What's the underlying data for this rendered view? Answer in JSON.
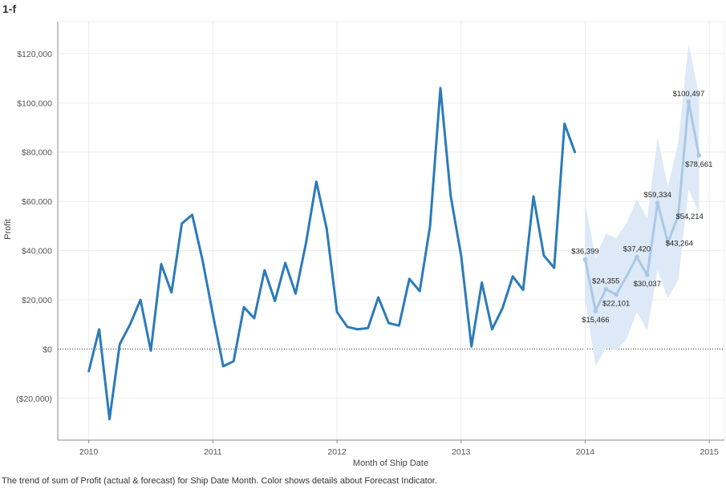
{
  "sheet_title": "1-f",
  "caption": "The trend of sum of Profit (actual & forecast)  for Ship Date Month.  Color shows details about Forecast Indicator.",
  "colors": {
    "actual": "#2b7bb9",
    "forecast": "#aac8e6",
    "band": "#dde9f6",
    "grid": "#ebebeb",
    "axis": "#888888",
    "zero_line": "#333333"
  },
  "chart_data": {
    "type": "line",
    "xlabel": "Month of Ship Date",
    "ylabel": "Profit",
    "xlim": [
      "2009-10-01",
      "2015-02-15"
    ],
    "ylim": [
      -37000,
      133000
    ],
    "x_ticks": [
      "2010",
      "2011",
      "2012",
      "2013",
      "2014",
      "2015"
    ],
    "y_ticks": [
      {
        "value": 120000,
        "label": "$120,000"
      },
      {
        "value": 100000,
        "label": "$100,000"
      },
      {
        "value": 80000,
        "label": "$80,000"
      },
      {
        "value": 60000,
        "label": "$60,000"
      },
      {
        "value": 40000,
        "label": "$40,000"
      },
      {
        "value": 20000,
        "label": "$20,000"
      },
      {
        "value": 0,
        "label": "$0"
      },
      {
        "value": -20000,
        "label": "($20,000)"
      }
    ],
    "grid": true,
    "series": [
      {
        "points": [
          [
            "2010-01",
            -9000
          ],
          [
            "2010-02",
            8000
          ],
          [
            "2010-03",
            -28500
          ],
          [
            "2010-04",
            2000
          ],
          [
            "2010-05",
            10000
          ],
          [
            "2010-06",
            20000
          ],
          [
            "2010-07",
            -700
          ],
          [
            "2010-08",
            34500
          ],
          [
            "2010-09",
            23000
          ],
          [
            "2010-10",
            51000
          ],
          [
            "2010-11",
            54500
          ],
          [
            "2010-12",
            36000
          ],
          [
            "2011-01",
            14000
          ],
          [
            "2011-02",
            -7000
          ],
          [
            "2011-03",
            -5000
          ],
          [
            "2011-04",
            17000
          ],
          [
            "2011-05",
            12500
          ],
          [
            "2011-06",
            32000
          ],
          [
            "2011-07",
            19500
          ],
          [
            "2011-08",
            35000
          ],
          [
            "2011-09",
            22500
          ],
          [
            "2011-10",
            43000
          ],
          [
            "2011-11",
            68000
          ],
          [
            "2011-12",
            49000
          ],
          [
            "2012-01",
            15000
          ],
          [
            "2012-02",
            9000
          ],
          [
            "2012-03",
            8000
          ],
          [
            "2012-04",
            8500
          ],
          [
            "2012-05",
            21000
          ],
          [
            "2012-06",
            10500
          ],
          [
            "2012-07",
            9500
          ],
          [
            "2012-08",
            28500
          ],
          [
            "2012-09",
            23500
          ],
          [
            "2012-10",
            50000
          ],
          [
            "2012-11",
            106000
          ],
          [
            "2012-12",
            62000
          ],
          [
            "2013-01",
            38000
          ],
          [
            "2013-02",
            1000
          ],
          [
            "2013-03",
            27000
          ],
          [
            "2013-04",
            8000
          ],
          [
            "2013-05",
            16500
          ],
          [
            "2013-06",
            29500
          ],
          [
            "2013-07",
            24000
          ],
          [
            "2013-08",
            62000
          ],
          [
            "2013-09",
            38000
          ],
          [
            "2013-10",
            33000
          ],
          [
            "2013-11",
            91500
          ],
          [
            "2013-12",
            80000
          ]
        ]
      },
      {
        "points": [
          [
            "2014-01",
            36399
          ],
          [
            "2014-02",
            15466
          ],
          [
            "2014-03",
            24355
          ],
          [
            "2014-04",
            22101
          ],
          [
            "2014-05",
            29500
          ],
          [
            "2014-06",
            37420
          ],
          [
            "2014-07",
            30037
          ],
          [
            "2014-08",
            59334
          ],
          [
            "2014-09",
            43264
          ],
          [
            "2014-10",
            54214
          ],
          [
            "2014-11",
            100497
          ],
          [
            "2014-12",
            78661
          ]
        ],
        "band_low": [
          20000,
          -7000,
          500,
          -500,
          4000,
          15000,
          7500,
          32000,
          20500,
          28000,
          65000,
          55000
        ],
        "band_high": [
          59000,
          37000,
          47000,
          45000,
          51000,
          61000,
          53000,
          86000,
          66000,
          84000,
          124000,
          103000
        ]
      }
    ],
    "data_labels": [
      {
        "x": "2014-01",
        "y": 36399,
        "text": "$36,399",
        "pos": "above"
      },
      {
        "x": "2014-02",
        "y": 15466,
        "text": "$15,466",
        "pos": "below"
      },
      {
        "x": "2014-03",
        "y": 24355,
        "text": "$24,355",
        "pos": "above"
      },
      {
        "x": "2014-04",
        "y": 22101,
        "text": "$22,101",
        "pos": "below"
      },
      {
        "x": "2014-06",
        "y": 37420,
        "text": "$37,420",
        "pos": "above"
      },
      {
        "x": "2014-07",
        "y": 30037,
        "text": "$30,037",
        "pos": "below"
      },
      {
        "x": "2014-08",
        "y": 59334,
        "text": "$59,334",
        "pos": "above"
      },
      {
        "x": "2014-09",
        "y": 43264,
        "text": "$43,264",
        "pos": "right"
      },
      {
        "x": "2014-10",
        "y": 54214,
        "text": "$54,214",
        "pos": "right"
      },
      {
        "x": "2014-11",
        "y": 100497,
        "text": "$100,497",
        "pos": "above"
      },
      {
        "x": "2014-12",
        "y": 78661,
        "text": "$78,661",
        "pos": "below"
      }
    ]
  }
}
